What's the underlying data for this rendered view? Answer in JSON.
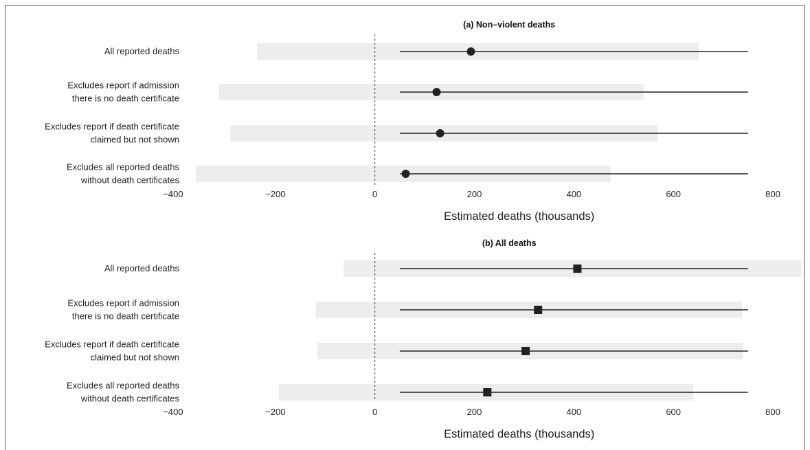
{
  "chart_data": [
    {
      "type": "forest",
      "title": "(a) Non–violent deaths",
      "xlabel": "Estimated deaths (thousands)",
      "xlim": [
        -400,
        800
      ],
      "xticks": [
        "−400",
        "−200",
        "0",
        "200",
        "400",
        "600",
        "800"
      ],
      "marker": "circle",
      "rows": [
        {
          "label": [
            "All reported deaths"
          ],
          "estimate": 193,
          "ci": [
            50,
            750
          ],
          "band": [
            -237,
            651
          ]
        },
        {
          "label": [
            "Excludes report if admission",
            "there is no death certificate"
          ],
          "estimate": 124,
          "ci": [
            50,
            750
          ],
          "band": [
            -313,
            540
          ]
        },
        {
          "label": [
            "Excludes report if death certificate",
            "claimed but not shown"
          ],
          "estimate": 131,
          "ci": [
            50,
            750
          ],
          "band": [
            -291,
            569
          ]
        },
        {
          "label": [
            "Excludes all reported deaths",
            "without death certificates"
          ],
          "estimate": 62,
          "ci": [
            50,
            750
          ],
          "band": [
            -360,
            474
          ]
        }
      ]
    },
    {
      "type": "forest",
      "title": "(b) All deaths",
      "xlabel": "Estimated deaths (thousands)",
      "xlim": [
        -400,
        800
      ],
      "xticks": [
        "−400",
        "−200",
        "0",
        "200",
        "400",
        "600",
        "800"
      ],
      "marker": "square",
      "rows": [
        {
          "label": [
            "All reported deaths"
          ],
          "estimate": 407,
          "ci": [
            50,
            750
          ],
          "band": [
            -63,
            857
          ]
        },
        {
          "label": [
            "Excludes report if admission",
            "there is no death certificate"
          ],
          "estimate": 328,
          "ci": [
            50,
            750
          ],
          "band": [
            -119,
            738
          ]
        },
        {
          "label": [
            "Excludes report if death certificate",
            "claimed but not shown"
          ],
          "estimate": 303,
          "ci": [
            50,
            750
          ],
          "band": [
            -116,
            740
          ]
        },
        {
          "label": [
            "Excludes all reported deaths",
            "without death certificates"
          ],
          "estimate": 226,
          "ci": [
            50,
            750
          ],
          "band": [
            -193,
            640
          ]
        }
      ]
    }
  ],
  "colors": {
    "band": "#ededed",
    "line": "#222222",
    "marker": "#222222",
    "zero_line": "#333333"
  }
}
